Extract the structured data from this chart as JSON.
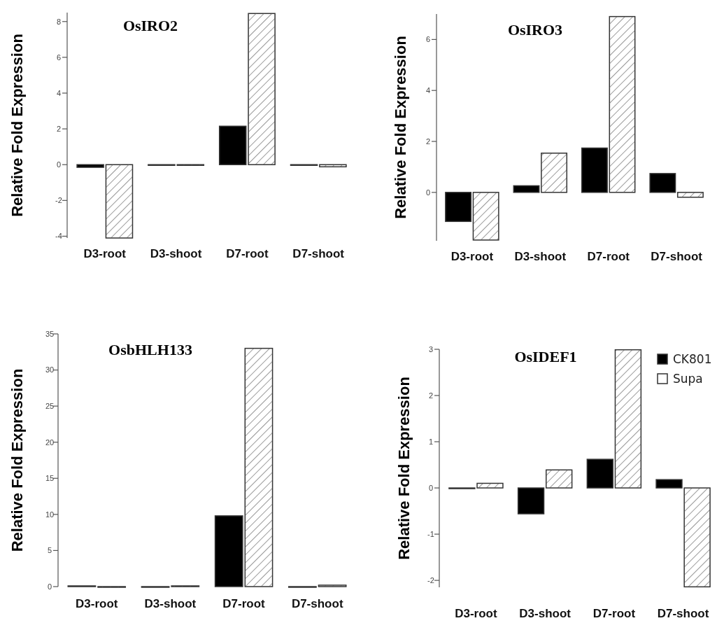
{
  "chart_data": [
    {
      "type": "bar",
      "title": "OsIRO2",
      "ylabel": "Relative Fold Expression",
      "categories": [
        "D3-root",
        "D3-shoot",
        "D7-root",
        "D7-shoot"
      ],
      "ylim": [
        -4.1,
        8.5
      ],
      "yticks": [
        -4,
        -2,
        0,
        2,
        4,
        6,
        8
      ],
      "legend": false,
      "series": [
        {
          "color": "#000000",
          "values": [
            -0.15,
            0,
            2.15,
            0
          ]
        },
        {
          "color": "#ffffff",
          "values": [
            -4.1,
            0,
            8.45,
            -0.12
          ]
        }
      ]
    },
    {
      "type": "bar",
      "title": "OsIRO3",
      "ylabel": "Relative Fold Expression",
      "categories": [
        "D3-root",
        "D3-shoot",
        "D7-root",
        "D7-shoot"
      ],
      "ylim": [
        -1.9,
        7
      ],
      "yticks": [
        0,
        2,
        4,
        6
      ],
      "legend": false,
      "series": [
        {
          "color": "#000000",
          "values": [
            -1.14,
            0.26,
            1.74,
            0.74
          ]
        },
        {
          "color": "#ffffff",
          "values": [
            -1.87,
            1.54,
            6.9,
            -0.19
          ]
        }
      ]
    },
    {
      "type": "bar",
      "title": "OsbHLH133",
      "ylabel": "Relative Fold Expression",
      "categories": [
        "D3-root",
        "D3-shoot",
        "D7-root",
        "D7-shoot"
      ],
      "ylim": [
        0,
        35
      ],
      "yticks": [
        0,
        5,
        10,
        15,
        20,
        25,
        30,
        35
      ],
      "legend": false,
      "series": [
        {
          "color": "#000000",
          "values": [
            0.1,
            0,
            9.8,
            0
          ]
        },
        {
          "color": "#ffffff",
          "values": [
            0,
            0.1,
            33,
            0.2
          ]
        }
      ]
    },
    {
      "type": "bar",
      "title": "OsIDEF1",
      "ylabel": "Relative Fold Expression",
      "categories": [
        "D3-root",
        "D3-shoot",
        "D7-root",
        "D7-shoot"
      ],
      "ylim": [
        -2.15,
        3
      ],
      "yticks": [
        -2,
        -1,
        0,
        1,
        2,
        3
      ],
      "legend": "top right",
      "series": [
        {
          "name": "CK801",
          "color": "#000000",
          "values": [
            -0.01,
            -0.56,
            0.62,
            0.18
          ]
        },
        {
          "name": "Supa",
          "color": "#ffffff",
          "values": [
            0.1,
            0.39,
            2.99,
            -2.14
          ]
        }
      ]
    }
  ]
}
